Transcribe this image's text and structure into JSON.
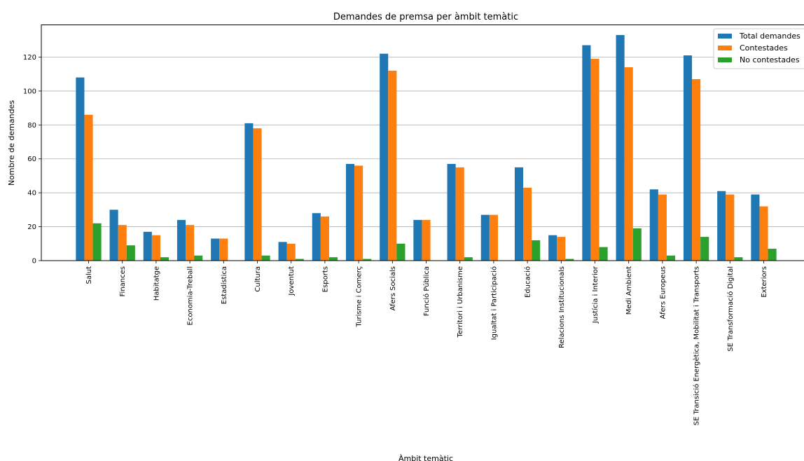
{
  "chart_data": {
    "type": "bar",
    "title": "Demandes de premsa per àmbit temàtic",
    "xlabel": "Àmbit temàtic",
    "ylabel": "Nombre de demandes",
    "ylim": [
      0,
      139
    ],
    "yticks": [
      0,
      20,
      40,
      60,
      80,
      100,
      120
    ],
    "grid": "y",
    "legend_position": "top-right",
    "categories": [
      "Salut",
      "Finances",
      "Habitatge",
      "Economia-Treball",
      "Estadística",
      "Cultura",
      "Joventut",
      "Esports",
      "Turisme i Comerç",
      "Afers Socials",
      "Funció Pública",
      "Territori i Urbanisme",
      "Igualtat i Participació",
      "Educació",
      "Relacions Institucionals",
      "Justícia i Interior",
      "Medi Ambient",
      "Afers Europeus",
      "SE Transició Energètica, Mobilitat i Transports",
      "SE Transformació Digital",
      "Exteriors"
    ],
    "series": [
      {
        "name": "Total demandes",
        "color": "#1f77b4",
        "values": [
          108,
          30,
          17,
          24,
          13,
          81,
          11,
          28,
          57,
          122,
          24,
          57,
          27,
          55,
          15,
          127,
          133,
          42,
          121,
          41,
          39
        ]
      },
      {
        "name": "Contestades",
        "color": "#ff7f0e",
        "values": [
          86,
          21,
          15,
          21,
          13,
          78,
          10,
          26,
          56,
          112,
          24,
          55,
          27,
          43,
          14,
          119,
          114,
          39,
          107,
          39,
          32
        ]
      },
      {
        "name": "No contestades",
        "color": "#2ca02c",
        "values": [
          22,
          9,
          2,
          3,
          0,
          3,
          1,
          2,
          1,
          10,
          0,
          2,
          0,
          12,
          1,
          8,
          19,
          3,
          14,
          2,
          7
        ]
      }
    ]
  }
}
